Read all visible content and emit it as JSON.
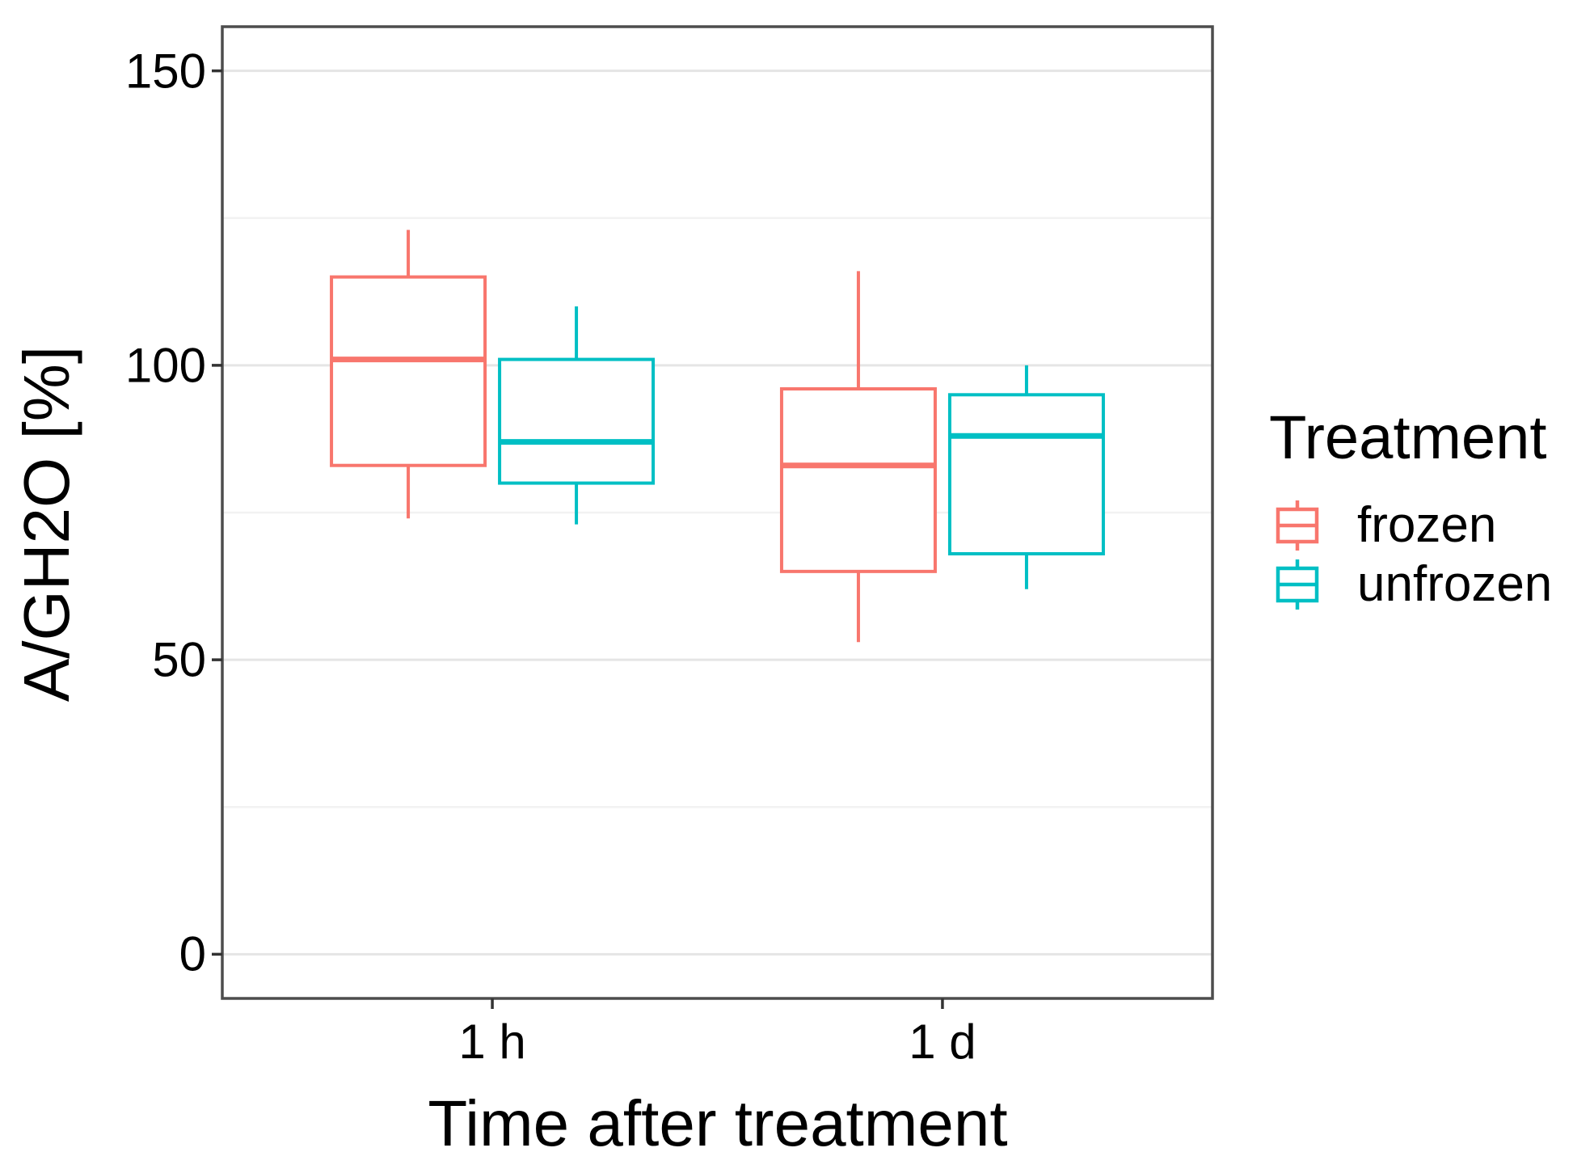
{
  "chart_data": {
    "type": "boxplot",
    "title": "",
    "xlabel": "Time after treatment",
    "ylabel": "A/GH2O [%]",
    "categories": [
      "1 h",
      "1 d"
    ],
    "y_ticks": [
      0,
      50,
      100,
      150
    ],
    "y_minor_ticks": [
      25,
      75,
      125
    ],
    "ylim": [
      -7.5,
      157.5
    ],
    "grid": true,
    "legend": {
      "title": "Treatment",
      "position": "right",
      "entries": [
        {
          "label": "frozen",
          "color": "#F8766D"
        },
        {
          "label": "unfrozen",
          "color": "#00BFC4"
        }
      ]
    },
    "series": [
      {
        "name": "frozen",
        "color": "#F8766D",
        "boxes": [
          {
            "category": "1 h",
            "whisker_low": 74,
            "q1": 83,
            "median": 101,
            "q3": 115,
            "whisker_high": 123
          },
          {
            "category": "1 d",
            "whisker_low": 53,
            "q1": 65,
            "median": 83,
            "q3": 96,
            "whisker_high": 116
          }
        ]
      },
      {
        "name": "unfrozen",
        "color": "#00BFC4",
        "boxes": [
          {
            "category": "1 h",
            "whisker_low": 73,
            "q1": 80,
            "median": 87,
            "q3": 101,
            "whisker_high": 110
          },
          {
            "category": "1 d",
            "whisker_low": 62,
            "q1": 68,
            "median": 88,
            "q3": 95,
            "whisker_high": 100
          }
        ]
      }
    ],
    "styles": {
      "panel_border": "#4d4d4d",
      "grid_major": "#e5e5e5",
      "grid_minor": "#f2f2f2",
      "tick_color": "#333333",
      "box_fill": "#ffffff",
      "text_color": "#000000"
    }
  }
}
